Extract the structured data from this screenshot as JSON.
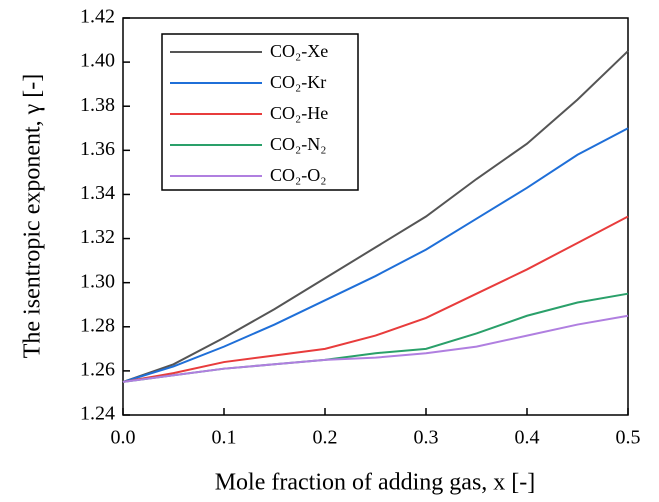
{
  "chart_data": {
    "type": "line",
    "xlabel": "Mole fraction of adding gas, x [-]",
    "ylabel": "The isentropic exponent, γ [-]",
    "x": [
      0,
      0.05,
      0.1,
      0.15,
      0.2,
      0.25,
      0.3,
      0.35,
      0.4,
      0.45,
      0.5
    ],
    "series": [
      {
        "name": "CO₂-Xe",
        "color": "#555555",
        "values": [
          1.255,
          1.263,
          1.275,
          1.288,
          1.302,
          1.316,
          1.33,
          1.347,
          1.363,
          1.383,
          1.405
        ]
      },
      {
        "name": "CO₂-Kr",
        "color": "#1f6fd8",
        "values": [
          1.255,
          1.262,
          1.271,
          1.281,
          1.292,
          1.303,
          1.315,
          1.329,
          1.343,
          1.358,
          1.37
        ]
      },
      {
        "name": "CO₂-He",
        "color": "#e83c3c",
        "values": [
          1.255,
          1.259,
          1.264,
          1.267,
          1.27,
          1.276,
          1.284,
          1.295,
          1.306,
          1.318,
          1.33
        ]
      },
      {
        "name": "CO₂-N₂",
        "color": "#2aa06a",
        "values": [
          1.255,
          1.258,
          1.261,
          1.263,
          1.265,
          1.268,
          1.27,
          1.277,
          1.285,
          1.291,
          1.295
        ]
      },
      {
        "name": "CO₂-O₂",
        "color": "#b07fe0",
        "values": [
          1.255,
          1.258,
          1.261,
          1.263,
          1.265,
          1.266,
          1.268,
          1.271,
          1.276,
          1.281,
          1.285
        ]
      }
    ],
    "xlim": [
      0,
      0.5
    ],
    "xticks": [
      {
        "value": 0,
        "label": "0.0"
      },
      0.1,
      0.2,
      0.3,
      0.4,
      0.5
    ],
    "ylim": [
      1.24,
      1.42
    ],
    "yticks": [
      1.24,
      1.26,
      1.28,
      {
        "value": 1.3,
        "label": "1.30"
      },
      1.32,
      1.34,
      1.36,
      1.38,
      {
        "value": 1.4,
        "label": "1.40"
      },
      1.42
    ],
    "legend": "upper left"
  }
}
